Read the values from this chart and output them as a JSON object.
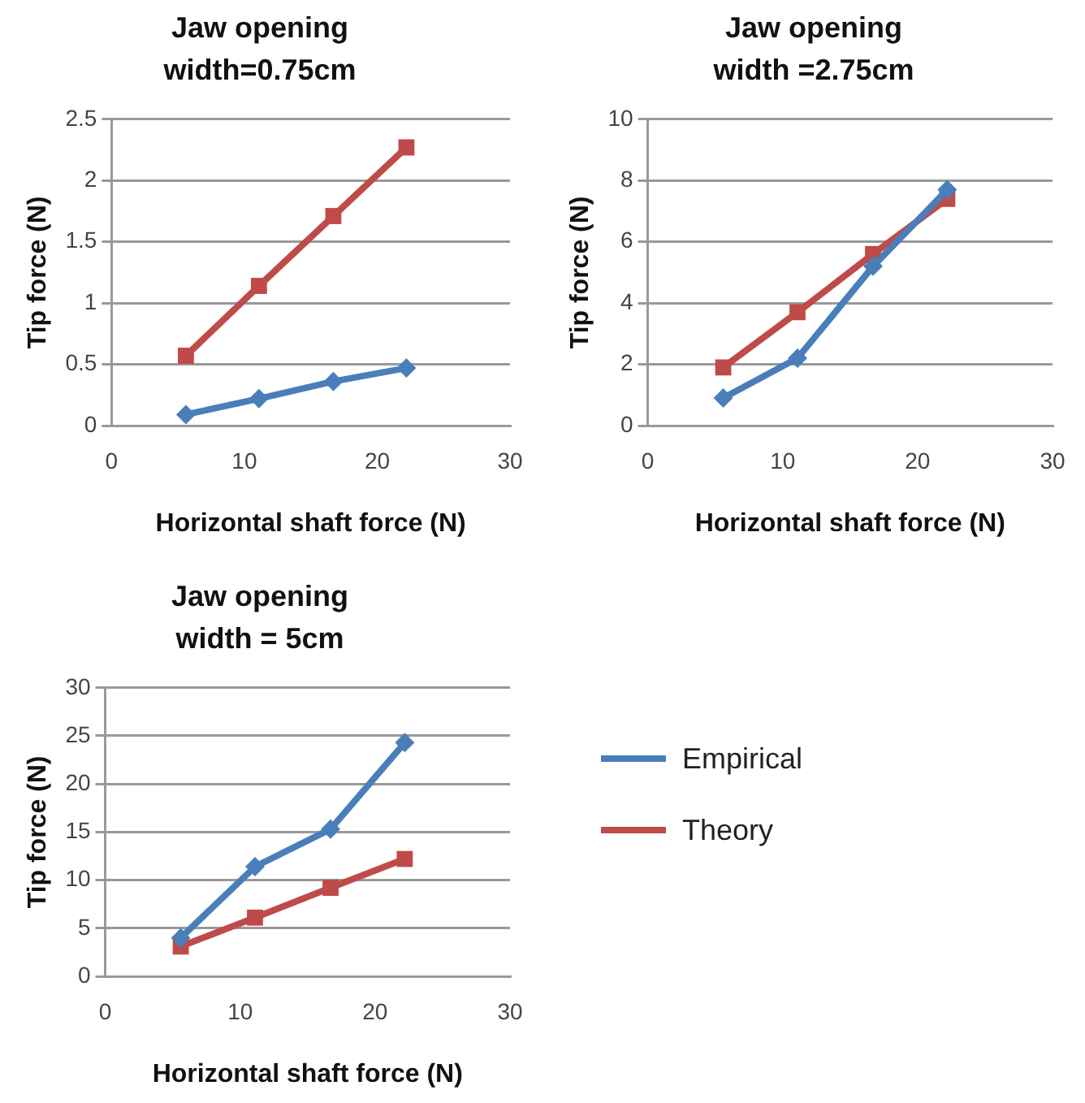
{
  "chart_data": [
    {
      "type": "line",
      "title": "Jaw opening width=0.75cm",
      "xlabel": "Horizontal shaft force (N)",
      "ylabel": "Tip force (N)",
      "x": [
        5.6,
        11.1,
        16.7,
        22.2
      ],
      "xlim": [
        0,
        30
      ],
      "xticks": [
        0,
        10,
        20,
        30
      ],
      "ylim": [
        0,
        2.5
      ],
      "yticks": [
        0,
        0.5,
        1,
        1.5,
        2,
        2.5
      ],
      "grid": "y",
      "legend": false,
      "series": [
        {
          "color": "#4a7ebb",
          "marker": "diamond",
          "values": [
            0.09,
            0.22,
            0.36,
            0.47
          ]
        },
        {
          "color": "#be4b48",
          "marker": "square",
          "values": [
            0.57,
            1.14,
            1.71,
            2.27
          ]
        }
      ]
    },
    {
      "type": "line",
      "title": "Jaw opening width =2.75cm",
      "xlabel": "Horizontal shaft force (N)",
      "ylabel": "Tip force (N)",
      "x": [
        5.6,
        11.1,
        16.7,
        22.2
      ],
      "xlim": [
        0,
        30
      ],
      "xticks": [
        0,
        10,
        20,
        30
      ],
      "ylim": [
        0,
        10
      ],
      "yticks": [
        0,
        2,
        4,
        6,
        8,
        10
      ],
      "grid": "y",
      "legend": false,
      "series": [
        {
          "color": "#4a7ebb",
          "marker": "diamond",
          "values": [
            0.9,
            2.2,
            5.2,
            7.7
          ]
        },
        {
          "color": "#be4b48",
          "marker": "square",
          "values": [
            1.9,
            3.7,
            5.6,
            7.4
          ]
        }
      ]
    },
    {
      "type": "line",
      "title": "Jaw opening width = 5cm",
      "xlabel": "Horizontal shaft force (N)",
      "ylabel": "Tip force (N)",
      "x": [
        5.6,
        11.1,
        16.7,
        22.2
      ],
      "xlim": [
        0,
        30
      ],
      "xticks": [
        0,
        10,
        20,
        30
      ],
      "ylim": [
        0,
        30
      ],
      "yticks": [
        0,
        5,
        10,
        15,
        20,
        25,
        30
      ],
      "grid": "y",
      "legend": "right",
      "series": [
        {
          "name": "Empirical",
          "color": "#4a7ebb",
          "marker": "diamond",
          "values": [
            4.0,
            11.4,
            15.3,
            24.3
          ]
        },
        {
          "name": "Theory",
          "color": "#be4b48",
          "marker": "square",
          "values": [
            3.1,
            6.1,
            9.2,
            12.2
          ]
        }
      ]
    }
  ]
}
